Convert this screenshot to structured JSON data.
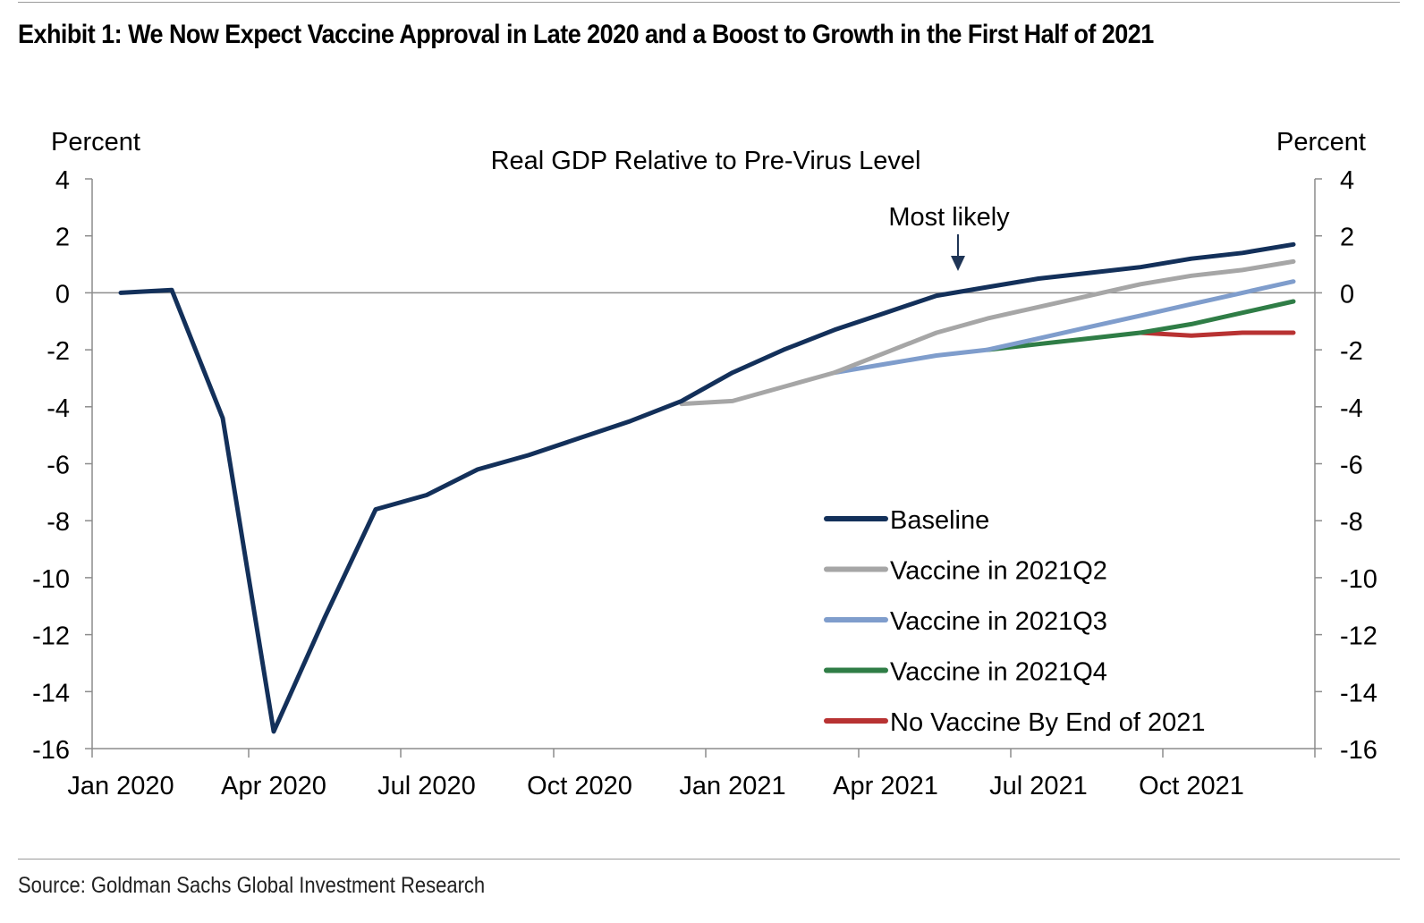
{
  "header": {
    "title": "Exhibit 1: We Now Expect Vaccine Approval in Late 2020 and a Boost to Growth in the First Half of 2021"
  },
  "footer": {
    "source": "Source: Goldman Sachs Global Investment Research"
  },
  "colors": {
    "baseline": "#13305a",
    "q2": "#a6a6a6",
    "q3": "#7f9dcc",
    "q4": "#2f7d46",
    "none": "#b83232",
    "axis": "#8c8c8c",
    "annotation_arrow": "#1f3556"
  },
  "chart_data": {
    "type": "line",
    "title": "Real GDP Relative to Pre-Virus Level",
    "ylabel_left": "Percent",
    "ylabel_right": "Percent",
    "ylim": [
      -16,
      4
    ],
    "yticks": [
      4,
      2,
      0,
      -2,
      -4,
      -6,
      -8,
      -10,
      -12,
      -14,
      -16
    ],
    "xlim": [
      "2020-01",
      "2021-12"
    ],
    "xticks": [
      {
        "x": "2020-01",
        "label": "Jan 2020"
      },
      {
        "x": "2020-04",
        "label": "Apr 2020"
      },
      {
        "x": "2020-07",
        "label": "Jul 2020"
      },
      {
        "x": "2020-10",
        "label": "Oct 2020"
      },
      {
        "x": "2021-01",
        "label": "Jan 2021"
      },
      {
        "x": "2021-04",
        "label": "Apr 2021"
      },
      {
        "x": "2021-07",
        "label": "Jul 2021"
      },
      {
        "x": "2021-10",
        "label": "Oct 2021"
      }
    ],
    "zero_line": true,
    "grid": false,
    "legend_position": "bottom-right",
    "annotation": {
      "text": "Most likely",
      "x": "2021-06",
      "y": 0
    },
    "series": [
      {
        "name": "Baseline",
        "color_key": "baseline",
        "x": [
          "2020-01",
          "2020-02",
          "2020-03",
          "2020-04",
          "2020-05",
          "2020-06",
          "2020-07",
          "2020-08",
          "2020-09",
          "2020-10",
          "2020-11",
          "2020-12",
          "2021-01",
          "2021-02",
          "2021-03",
          "2021-04",
          "2021-05",
          "2021-06",
          "2021-07",
          "2021-08",
          "2021-09",
          "2021-10",
          "2021-11",
          "2021-12"
        ],
        "values": [
          0,
          0.1,
          -4.4,
          -15.4,
          -11.4,
          -7.6,
          -7.1,
          -6.2,
          -5.7,
          -5.1,
          -4.5,
          -3.8,
          -2.8,
          -2.0,
          -1.3,
          -0.7,
          -0.1,
          0.2,
          0.5,
          0.7,
          0.9,
          1.2,
          1.4,
          1.7
        ]
      },
      {
        "name": "Vaccine in 2021Q2",
        "color_key": "q2",
        "x": [
          "2020-12",
          "2021-01",
          "2021-02",
          "2021-03",
          "2021-04",
          "2021-05",
          "2021-06",
          "2021-07",
          "2021-08",
          "2021-09",
          "2021-10",
          "2021-11",
          "2021-12"
        ],
        "values": [
          -3.9,
          -3.8,
          -3.3,
          -2.8,
          -2.1,
          -1.4,
          -0.9,
          -0.5,
          -0.1,
          0.3,
          0.6,
          0.8,
          1.1
        ]
      },
      {
        "name": "Vaccine in 2021Q3",
        "color_key": "q3",
        "x": [
          "2021-03",
          "2021-04",
          "2021-05",
          "2021-06",
          "2021-07",
          "2021-08",
          "2021-09",
          "2021-10",
          "2021-11",
          "2021-12"
        ],
        "values": [
          -2.8,
          -2.5,
          -2.2,
          -2.0,
          -1.6,
          -1.2,
          -0.8,
          -0.4,
          0.0,
          0.4
        ]
      },
      {
        "name": "Vaccine in 2021Q4",
        "color_key": "q4",
        "x": [
          "2021-06",
          "2021-07",
          "2021-08",
          "2021-09",
          "2021-10",
          "2021-11",
          "2021-12"
        ],
        "values": [
          -2.0,
          -1.8,
          -1.6,
          -1.4,
          -1.1,
          -0.7,
          -0.3
        ]
      },
      {
        "name": "No Vaccine By End of 2021",
        "color_key": "none",
        "x": [
          "2021-09",
          "2021-10",
          "2021-11",
          "2021-12"
        ],
        "values": [
          -1.4,
          -1.5,
          -1.4,
          -1.4
        ]
      }
    ]
  }
}
